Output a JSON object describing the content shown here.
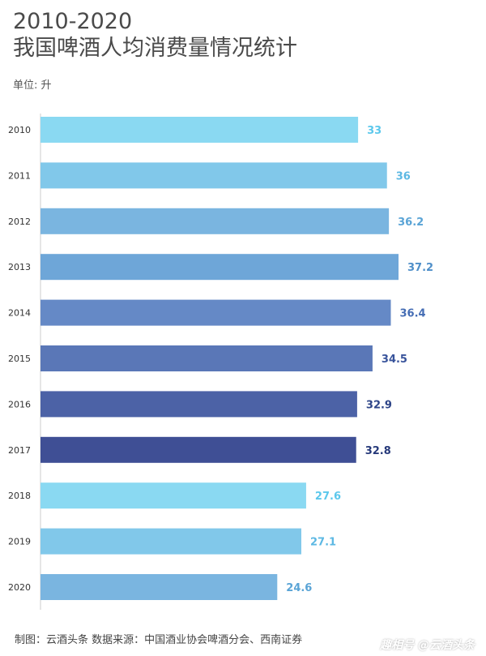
{
  "title_line1": "2010-2020",
  "title_line2": "我国啤酒人均消费量情况统计",
  "unit_label": "单位: 升",
  "footer": "制图：云酒头条 数据来源：中国酒业协会啤酒分会、西南证券",
  "watermark": "趣相号 @云酒头条",
  "chart_data": {
    "type": "bar",
    "orientation": "horizontal",
    "title": "2010-2020 我国啤酒人均消费量情况统计",
    "xlabel": "",
    "ylabel": "",
    "unit": "单位: 升",
    "categories": [
      "2010",
      "2011",
      "2012",
      "2013",
      "2014",
      "2015",
      "2016",
      "2017",
      "2018",
      "2019",
      "2020"
    ],
    "values": [
      33,
      36,
      36.2,
      37.2,
      36.4,
      34.5,
      32.9,
      32.8,
      27.6,
      27.1,
      24.6
    ],
    "value_labels": [
      "33",
      "36",
      "36.2",
      "37.2",
      "36.4",
      "34.5",
      "32.9",
      "32.8",
      "27.6",
      "27.1",
      "24.6"
    ],
    "xlim": [
      0,
      37.2
    ],
    "bar_colors": [
      "#8ad9f2",
      "#81c8ea",
      "#7ab5e0",
      "#6ea6d8",
      "#6589c6",
      "#5a77b7",
      "#4c62a6",
      "#3f4f95",
      "#8ad9f2",
      "#81c8ea",
      "#7ab5e0"
    ],
    "label_colors": [
      "#5cc8ec",
      "#5cb8e3",
      "#5aa4d6",
      "#4f8fc9",
      "#456db4",
      "#38539b",
      "#2e4588",
      "#26397a",
      "#5cc8ec",
      "#5cb8e3",
      "#5aa4d6"
    ],
    "grid": false,
    "legend": "none"
  }
}
